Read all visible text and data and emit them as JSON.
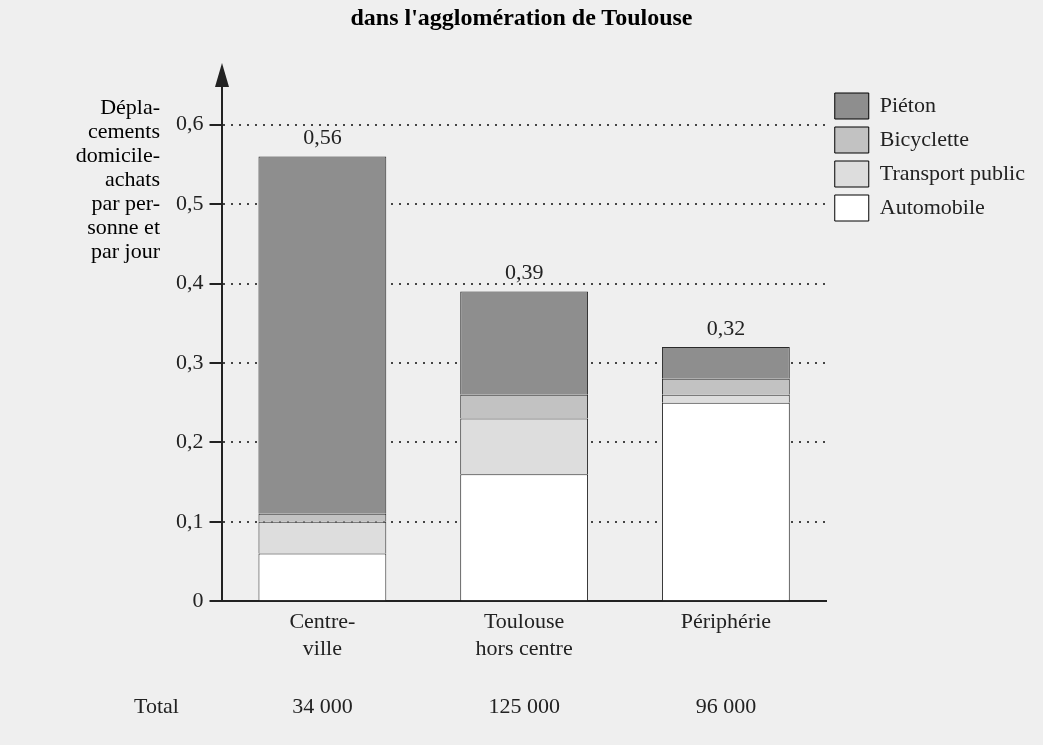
{
  "chart_data": {
    "type": "bar",
    "title": "dans l'agglomération de Toulouse",
    "ylabel": "Dépla-\ncements\ndomicile-\nachats\npar per-\nsonne et\npar jour",
    "categories": [
      "Centre-ville",
      "Toulouse hors centre",
      "Périphérie"
    ],
    "stacked": true,
    "series": [
      {
        "name": "Automobile",
        "color": "#ffffff",
        "values": [
          0.06,
          0.16,
          0.25
        ]
      },
      {
        "name": "Transport public",
        "color": "#dddddd",
        "values": [
          0.04,
          0.07,
          0.01
        ]
      },
      {
        "name": "Bicyclette",
        "color": "#c2c2c2",
        "values": [
          0.01,
          0.03,
          0.02
        ]
      },
      {
        "name": "Piéton",
        "color": "#8e8e8e",
        "values": [
          0.45,
          0.13,
          0.04
        ]
      }
    ],
    "totals": [
      "0,56",
      "0,39",
      "0,32"
    ],
    "ylim": [
      0,
      0.65
    ],
    "yticks": [
      0,
      {
        "value": 0.1,
        "label": "0,1"
      },
      {
        "value": 0.2,
        "label": "0,2"
      },
      {
        "value": 0.3,
        "label": "0,3"
      },
      {
        "value": 0.4,
        "label": "0,4"
      },
      {
        "value": 0.5,
        "label": "0,5"
      },
      {
        "value": 0.6,
        "label": "0,6"
      }
    ],
    "grid": "y",
    "legend": "top right",
    "annotations": [
      "Total",
      "34 000",
      "125 000",
      "96 000"
    ]
  }
}
